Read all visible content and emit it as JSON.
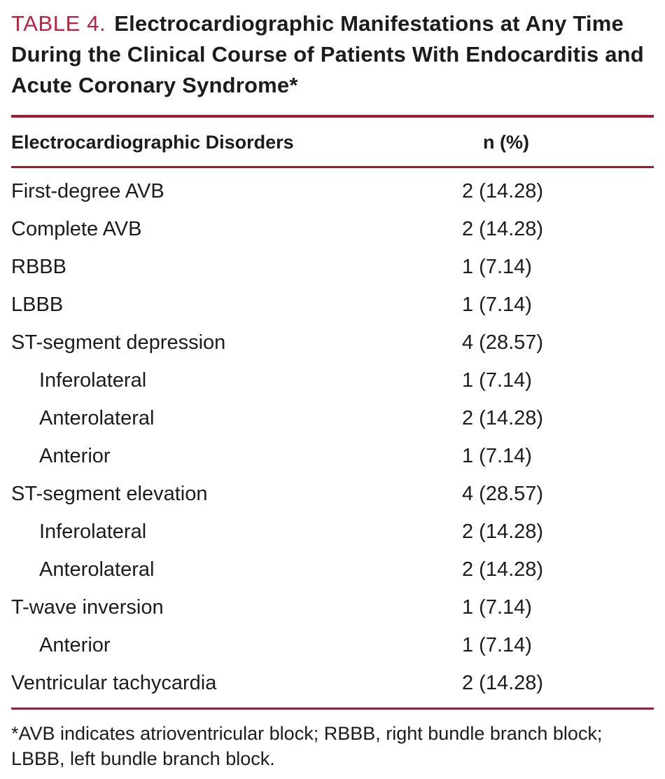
{
  "colors": {
    "accent": "#c01f3e",
    "rule": "#a01d36"
  },
  "title": {
    "label": "TABLE 4.",
    "text": "Electrocardiographic Manifestations at Any Time During the Clinical Course of Patients With Endocarditis and Acute Coronary Syndrome*"
  },
  "table": {
    "headers": [
      "Electrocardiographic Disorders",
      "n (%)"
    ],
    "rows": [
      {
        "label": "First-degree AVB",
        "value": "2 (14.28)",
        "indent": false
      },
      {
        "label": "Complete AVB",
        "value": "2 (14.28)",
        "indent": false
      },
      {
        "label": "RBBB",
        "value": "1 (7.14)",
        "indent": false
      },
      {
        "label": "LBBB",
        "value": "1 (7.14)",
        "indent": false
      },
      {
        "label": "ST-segment depression",
        "value": "4 (28.57)",
        "indent": false
      },
      {
        "label": "Inferolateral",
        "value": "1 (7.14)",
        "indent": true
      },
      {
        "label": "Anterolateral",
        "value": "2 (14.28)",
        "indent": true
      },
      {
        "label": "Anterior",
        "value": "1 (7.14)",
        "indent": true
      },
      {
        "label": "ST-segment elevation",
        "value": "4 (28.57)",
        "indent": false
      },
      {
        "label": "Inferolateral",
        "value": "2 (14.28)",
        "indent": true
      },
      {
        "label": "Anterolateral",
        "value": "2 (14.28)",
        "indent": true
      },
      {
        "label": "T-wave inversion",
        "value": "1 (7.14)",
        "indent": false
      },
      {
        "label": "Anterior",
        "value": "1 (7.14)",
        "indent": true
      },
      {
        "label": "Ventricular tachycardia",
        "value": "2 (14.28)",
        "indent": false
      }
    ]
  },
  "footnote": "*AVB indicates atrioventricular block; RBBB, right bundle branch block; LBBB, left bundle branch block."
}
